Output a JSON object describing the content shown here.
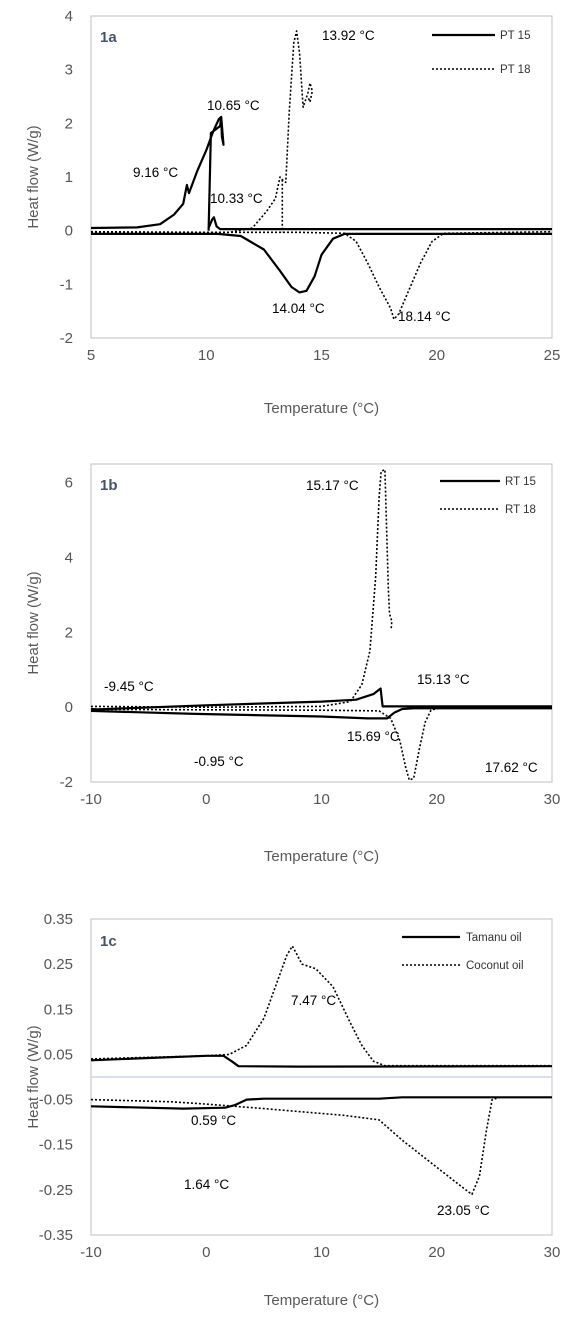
{
  "chart_data": [
    {
      "type": "line",
      "panel_label": "1a",
      "xlabel": "Temperature  (°C)",
      "ylabel": "Heat flow (W/g)",
      "xlim": [
        5,
        25
      ],
      "ylim": [
        -2,
        4
      ],
      "xticks": [
        5,
        10,
        15,
        20,
        25
      ],
      "yticks": [
        -2,
        -1,
        0,
        1,
        2,
        3,
        4
      ],
      "grid": false,
      "legend_position": "top-right",
      "series": [
        {
          "name": "PT 15",
          "style": "solid",
          "curves": [
            [
              [
                5,
                0.05
              ],
              [
                7,
                0.06
              ],
              [
                8,
                0.12
              ],
              [
                8.6,
                0.3
              ],
              [
                9.0,
                0.5
              ],
              [
                9.16,
                0.85
              ],
              [
                9.25,
                0.7
              ],
              [
                9.6,
                1.1
              ],
              [
                10.0,
                1.5
              ],
              [
                10.3,
                1.85
              ],
              [
                10.55,
                2.08
              ],
              [
                10.65,
                2.12
              ],
              [
                10.68,
                1.75
              ],
              [
                10.75,
                1.6
              ],
              [
                10.65,
                2.12
              ],
              [
                10.6,
                1.95
              ],
              [
                10.45,
                1.9
              ],
              [
                10.2,
                1.82
              ],
              [
                10.1,
                0.0
              ]
            ],
            [
              [
                10.1,
                0.05
              ],
              [
                10.25,
                0.2
              ],
              [
                10.33,
                0.25
              ],
              [
                10.45,
                0.08
              ],
              [
                10.6,
                0.03
              ],
              [
                25,
                0.03
              ]
            ],
            [
              [
                5,
                -0.06
              ],
              [
                9,
                -0.06
              ],
              [
                10.5,
                -0.06
              ],
              [
                11.5,
                -0.1
              ],
              [
                12.5,
                -0.35
              ],
              [
                13.2,
                -0.75
              ],
              [
                13.7,
                -1.05
              ],
              [
                14.04,
                -1.15
              ],
              [
                14.35,
                -1.12
              ],
              [
                14.7,
                -0.85
              ],
              [
                15.0,
                -0.45
              ],
              [
                15.5,
                -0.15
              ],
              [
                16.0,
                -0.06
              ],
              [
                25,
                -0.06
              ]
            ]
          ]
        },
        {
          "name": "PT 18",
          "style": "dotted",
          "curves": [
            [
              [
                5,
                -0.02
              ],
              [
                10,
                -0.03
              ],
              [
                11,
                -0.03
              ],
              [
                12,
                0.05
              ],
              [
                12.6,
                0.35
              ],
              [
                13.0,
                0.6
              ],
              [
                13.2,
                1.0
              ],
              [
                13.3,
                0.95
              ],
              [
                13.45,
                0.9
              ],
              [
                13.6,
                2.2
              ],
              [
                13.8,
                3.5
              ],
              [
                13.92,
                3.72
              ],
              [
                14.05,
                3.3
              ],
              [
                14.2,
                2.3
              ],
              [
                14.4,
                2.55
              ],
              [
                14.5,
                2.75
              ],
              [
                14.6,
                2.6
              ],
              [
                14.5,
                2.4
              ],
              [
                14.4,
                2.5
              ]
            ],
            [
              [
                13.3,
                0.95
              ],
              [
                13.3,
                -0.03
              ]
            ],
            [
              [
                5,
                -0.03
              ],
              [
                14,
                -0.03
              ],
              [
                15,
                -0.04
              ],
              [
                16,
                -0.05
              ],
              [
                16.5,
                -0.2
              ],
              [
                17.0,
                -0.6
              ],
              [
                17.5,
                -1.05
              ],
              [
                18.0,
                -1.45
              ],
              [
                18.14,
                -1.65
              ],
              [
                18.35,
                -1.55
              ],
              [
                18.8,
                -1.1
              ],
              [
                19.3,
                -0.6
              ],
              [
                19.8,
                -0.2
              ],
              [
                20.3,
                -0.05
              ],
              [
                25,
                -0.02
              ]
            ]
          ]
        }
      ],
      "annotations": [
        {
          "text": "9.16 °C",
          "x": 9.16,
          "y": 0.85
        },
        {
          "text": "10.65 °C",
          "x": 10.65,
          "y": 2.12
        },
        {
          "text": "10.33 °C",
          "x": 10.33,
          "y": 0.25
        },
        {
          "text": "13.92 °C",
          "x": 13.92,
          "y": 3.72
        },
        {
          "text": "14.04 °C",
          "x": 14.04,
          "y": -1.15
        },
        {
          "text": "18.14 °C",
          "x": 18.14,
          "y": -1.65
        }
      ]
    },
    {
      "type": "line",
      "panel_label": "1b",
      "xlabel": "Temperature  (°C)",
      "ylabel": "Heat flow (W/g)",
      "xlim": [
        -10,
        30
      ],
      "ylim": [
        -2,
        6.5
      ],
      "xticks": [
        -10,
        0,
        10,
        20,
        30
      ],
      "yticks": [
        -2,
        0,
        2,
        4,
        6
      ],
      "grid": false,
      "legend_position": "top-right",
      "series": [
        {
          "name": "RT 15",
          "style": "solid",
          "curves": [
            [
              [
                -10,
                -0.05
              ],
              [
                -9.45,
                -0.06
              ],
              [
                0,
                0.05
              ],
              [
                10,
                0.15
              ],
              [
                13,
                0.2
              ],
              [
                14.5,
                0.35
              ],
              [
                15.13,
                0.5
              ],
              [
                15.3,
                0.02
              ],
              [
                30,
                0.02
              ]
            ],
            [
              [
                -10,
                -0.1
              ],
              [
                -0.95,
                -0.18
              ],
              [
                10,
                -0.25
              ],
              [
                14,
                -0.3
              ],
              [
                15.69,
                -0.3
              ],
              [
                16.3,
                -0.15
              ],
              [
                17.0,
                -0.05
              ],
              [
                18,
                -0.03
              ],
              [
                30,
                -0.03
              ]
            ]
          ]
        },
        {
          "name": "RT 18",
          "style": "dotted",
          "curves": [
            [
              [
                -10,
                0.02
              ],
              [
                0,
                0.0
              ],
              [
                10,
                0.02
              ],
              [
                12.5,
                0.15
              ],
              [
                13.5,
                0.6
              ],
              [
                14.2,
                1.5
              ],
              [
                14.7,
                3.5
              ],
              [
                15.0,
                5.6
              ],
              [
                15.17,
                6.3
              ],
              [
                15.5,
                6.35
              ],
              [
                15.8,
                3.2
              ],
              [
                15.9,
                2.5
              ],
              [
                16.1,
                2.3
              ],
              [
                16.05,
                2.1
              ]
            ],
            [
              [
                -10,
                -0.06
              ],
              [
                10,
                -0.08
              ],
              [
                15,
                -0.1
              ],
              [
                16.0,
                -0.3
              ],
              [
                16.8,
                -0.9
              ],
              [
                17.3,
                -1.6
              ],
              [
                17.62,
                -1.95
              ],
              [
                18.0,
                -1.9
              ],
              [
                18.5,
                -1.1
              ],
              [
                19.0,
                -0.4
              ],
              [
                19.5,
                -0.08
              ],
              [
                20.2,
                -0.02
              ],
              [
                30,
                -0.02
              ]
            ]
          ]
        }
      ],
      "annotations": [
        {
          "text": "15.17 °C",
          "x": 15.17,
          "y": 6.3
        },
        {
          "text": "-9.45 °C",
          "x": -9.45,
          "y": -0.06
        },
        {
          "text": "15.13 °C",
          "x": 15.13,
          "y": 0.5
        },
        {
          "text": "-0.95 °C",
          "x": -0.95,
          "y": -0.18
        },
        {
          "text": "15.69 °C",
          "x": 15.69,
          "y": -0.3
        },
        {
          "text": "17.62 °C",
          "x": 17.62,
          "y": -1.95
        }
      ]
    },
    {
      "type": "line",
      "panel_label": "1c",
      "xlabel": "Temperature  (°C)",
      "ylabel": "Heat flow (W/g)",
      "xlim": [
        -10,
        30
      ],
      "ylim": [
        -0.35,
        0.35
      ],
      "xticks": [
        -10,
        0,
        10,
        20,
        30
      ],
      "yticks": [
        0.35,
        0.25,
        0.15,
        0.05,
        -0.05,
        -0.15,
        -0.25,
        -0.35
      ],
      "ytick_labels": [
        "0.35",
        "0.25",
        "0.15",
        "0.05",
        "-0.05",
        "-0.15",
        "-0.25",
        "-0.35"
      ],
      "zero_line": true,
      "grid": false,
      "legend_position": "top-right",
      "series": [
        {
          "name": "Tamanu oil",
          "style": "solid",
          "curves": [
            [
              [
                -10,
                0.037
              ],
              [
                -5,
                0.042
              ],
              [
                0,
                0.047
              ],
              [
                1.5,
                0.047
              ],
              [
                2.2,
                0.035
              ],
              [
                2.8,
                0.024
              ],
              [
                8,
                0.023
              ],
              [
                30,
                0.024
              ]
            ],
            [
              [
                -10,
                -0.065
              ],
              [
                -2,
                -0.07
              ],
              [
                1.64,
                -0.068
              ],
              [
                2.5,
                -0.062
              ],
              [
                3.5,
                -0.05
              ],
              [
                5,
                -0.048
              ],
              [
                15,
                -0.048
              ],
              [
                17,
                -0.045
              ],
              [
                30,
                -0.045
              ]
            ]
          ]
        },
        {
          "name": "Coconut oil",
          "style": "dotted",
          "curves": [
            [
              [
                -10,
                0.04
              ],
              [
                0,
                0.047
              ],
              [
                2,
                0.05
              ],
              [
                3.5,
                0.07
              ],
              [
                5,
                0.13
              ],
              [
                6,
                0.2
              ],
              [
                7.0,
                0.27
              ],
              [
                7.47,
                0.29
              ],
              [
                7.8,
                0.275
              ],
              [
                8.3,
                0.25
              ],
              [
                9.5,
                0.24
              ],
              [
                11,
                0.2
              ],
              [
                12.5,
                0.12
              ],
              [
                13.5,
                0.07
              ],
              [
                14.5,
                0.035
              ],
              [
                15.5,
                0.025
              ],
              [
                30,
                0.025
              ]
            ],
            [
              [
                -10,
                -0.05
              ],
              [
                -3,
                -0.055
              ],
              [
                0,
                -0.06
              ],
              [
                5,
                -0.07
              ],
              [
                12,
                -0.085
              ],
              [
                15,
                -0.095
              ],
              [
                17,
                -0.14
              ],
              [
                20,
                -0.2
              ],
              [
                22,
                -0.24
              ],
              [
                23.05,
                -0.26
              ],
              [
                23.7,
                -0.22
              ],
              [
                24.3,
                -0.12
              ],
              [
                24.8,
                -0.05
              ],
              [
                25.5,
                -0.045
              ],
              [
                30,
                -0.045
              ]
            ]
          ]
        }
      ],
      "annotations": [
        {
          "text": "7.47 °C",
          "x": 7.47,
          "y": 0.29
        },
        {
          "text": "0.59 °C",
          "x": 0.59,
          "y": 0.047
        },
        {
          "text": "1.64 °C",
          "x": 1.64,
          "y": -0.068
        },
        {
          "text": "23.05 °C",
          "x": 23.05,
          "y": -0.26
        }
      ]
    }
  ],
  "colors": {
    "axis": "#bfbfbf",
    "zero_line_1c": "#c9d6e8",
    "line": "#000000",
    "label_text": "#44546a"
  }
}
